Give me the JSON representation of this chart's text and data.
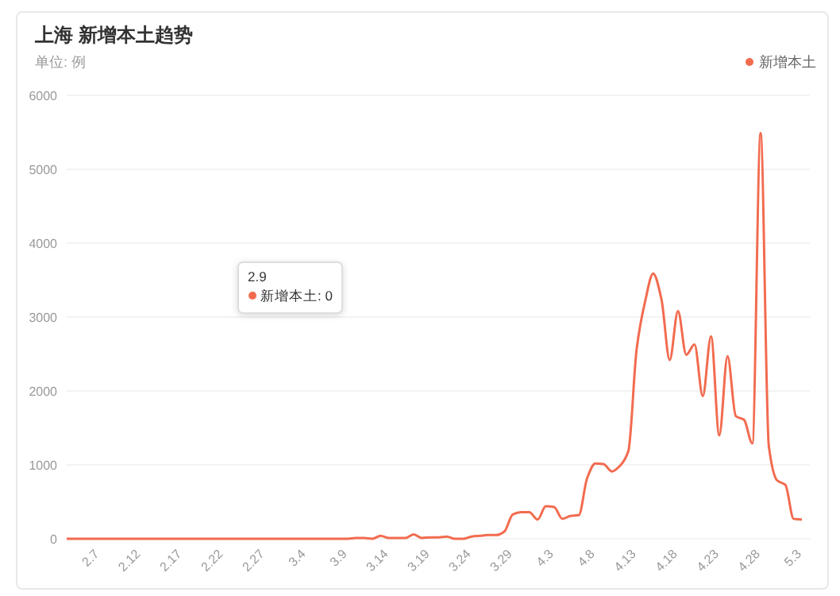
{
  "chart_data": {
    "type": "line",
    "title": "上海 新增本土趋势",
    "subtitle": "单位: 例",
    "categories": [
      null,
      null,
      null,
      null,
      "2.7",
      null,
      null,
      null,
      null,
      "2.12",
      null,
      null,
      null,
      null,
      "2.17",
      null,
      null,
      null,
      null,
      "2.22",
      null,
      null,
      null,
      null,
      "2.27",
      null,
      null,
      null,
      null,
      "3.4",
      null,
      null,
      null,
      null,
      "3.9",
      null,
      null,
      null,
      null,
      "3.14",
      null,
      null,
      null,
      null,
      "3.19",
      null,
      null,
      null,
      null,
      "3.24",
      null,
      null,
      null,
      null,
      "3.29",
      null,
      null,
      null,
      null,
      "4.3",
      null,
      null,
      null,
      null,
      "4.8",
      null,
      null,
      null,
      null,
      "4.13",
      null,
      null,
      null,
      null,
      "4.18",
      null,
      null,
      null,
      null,
      "4.23",
      null,
      null,
      null,
      null,
      "4.28",
      null,
      null,
      null,
      null,
      "5.3"
    ],
    "series": [
      {
        "name": "新增本土",
        "color": "#f26b4f",
        "values": [
          0,
          0,
          0,
          0,
          0,
          0,
          0,
          0,
          0,
          0,
          0,
          0,
          0,
          0,
          0,
          0,
          0,
          0,
          0,
          0,
          0,
          0,
          0,
          0,
          0,
          0,
          0,
          0,
          0,
          0,
          0,
          0,
          0,
          0,
          0,
          10,
          10,
          0,
          40,
          10,
          10,
          10,
          60,
          10,
          20,
          20,
          30,
          0,
          0,
          30,
          40,
          50,
          50,
          100,
          330,
          360,
          360,
          260,
          440,
          430,
          270,
          310,
          320,
          820,
          1020,
          1010,
          910,
          990,
          1190,
          2570,
          3200,
          3590,
          3240,
          2420,
          3080,
          2490,
          2630,
          1930,
          2740,
          1400,
          2470,
          1660,
          1610,
          1290,
          5490,
          1250,
          790,
          730,
          270,
          260
        ]
      }
    ],
    "ylim": [
      0,
      6000
    ],
    "yticks": [
      0,
      1000,
      2000,
      3000,
      4000,
      5000,
      6000
    ],
    "grid": "y",
    "legend": "top right",
    "marker": "none",
    "annotations": [
      "2.9",
      "新增本土: 0"
    ]
  }
}
